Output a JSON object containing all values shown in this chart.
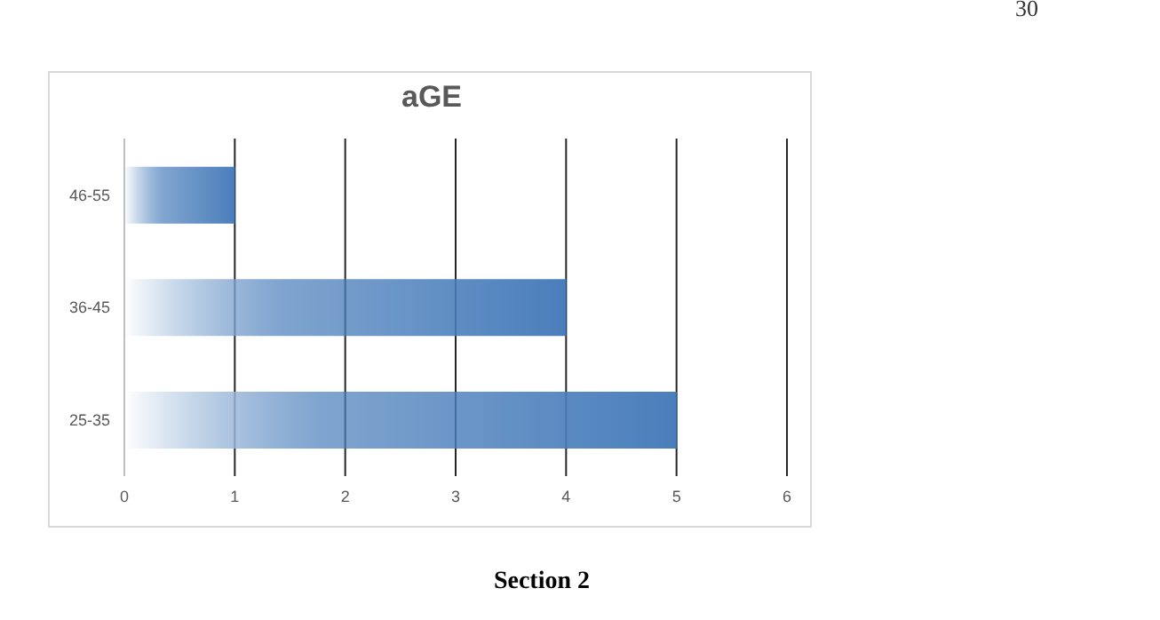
{
  "chart_data": {
    "type": "bar",
    "orientation": "horizontal",
    "title": "aGE",
    "categories": [
      "46-55",
      "36-45",
      "25-35"
    ],
    "values": [
      1,
      4,
      5
    ],
    "color": "#4a7ebb",
    "xlim": [
      0,
      6
    ],
    "xticks": [
      0,
      1,
      2,
      3,
      4,
      5,
      6
    ],
    "grid": "x",
    "annotations": [
      "30",
      "Section 2"
    ]
  }
}
